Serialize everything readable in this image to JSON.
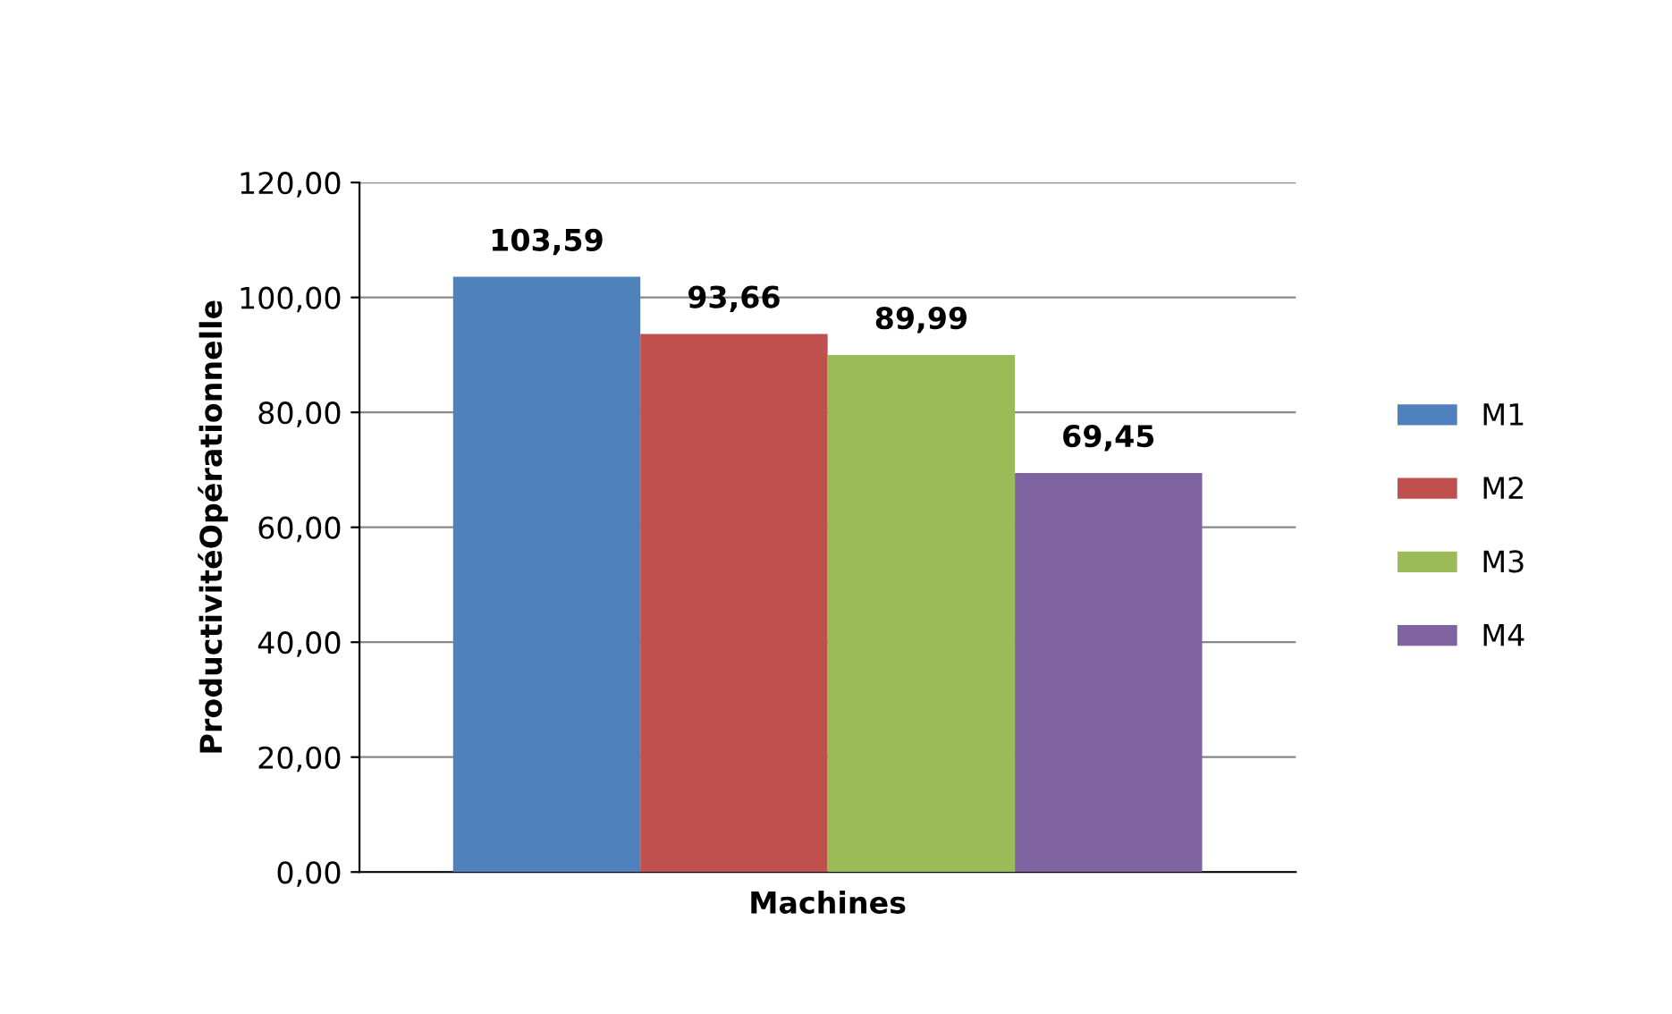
{
  "chart_data": {
    "type": "bar",
    "xlabel": "Machines",
    "ylabel": "ProductivitéOpérationnelle",
    "categories": [
      null
    ],
    "series": [
      {
        "name": "M1",
        "color": "#4f81bd",
        "values": [
          103.59
        ],
        "value_labels": [
          "103,59"
        ]
      },
      {
        "name": "M2",
        "color": "#c0504d",
        "values": [
          93.66
        ],
        "value_labels": [
          "93,66"
        ]
      },
      {
        "name": "M3",
        "color": "#9bbb59",
        "values": [
          89.99
        ],
        "value_labels": [
          "89,99"
        ]
      },
      {
        "name": "M4",
        "color": "#8064a2",
        "values": [
          69.45
        ],
        "value_labels": [
          "69,45"
        ]
      }
    ],
    "ylim": [
      0,
      120
    ],
    "yticks": [
      {
        "value": 0,
        "label": "0,00"
      },
      {
        "value": 20,
        "label": "20,00"
      },
      {
        "value": 40,
        "label": "40,00"
      },
      {
        "value": 60,
        "label": "60,00"
      },
      {
        "value": 80,
        "label": "80,00"
      },
      {
        "value": 100,
        "label": "100,00"
      },
      {
        "value": 120,
        "label": "120,00"
      }
    ],
    "grid": "y",
    "legend": "right"
  }
}
